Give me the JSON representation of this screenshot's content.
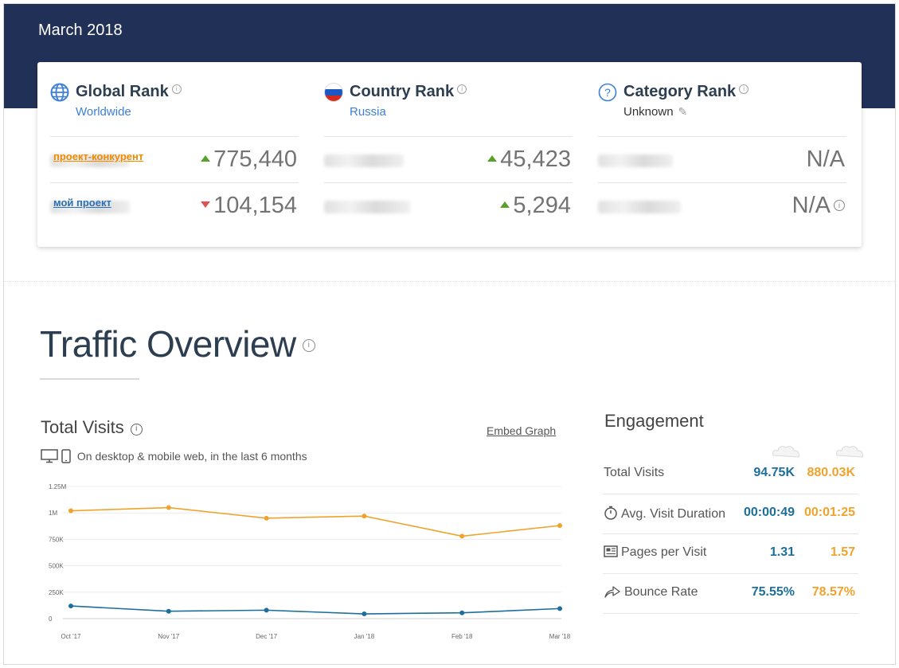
{
  "header": {
    "date": "March 2018"
  },
  "ranks": [
    {
      "title": "Global Rank",
      "subtitle": "Worldwide",
      "icon": "globe-icon",
      "rows": [
        {
          "site": "проект-конкурент",
          "site_color": "orange",
          "value": "775,440",
          "trend": "up"
        },
        {
          "site": "мой проект",
          "site_color": "blue",
          "value": "104,154",
          "trend": "down"
        }
      ]
    },
    {
      "title": "Country Rank",
      "subtitle": "Russia",
      "icon": "russia-flag-icon",
      "rows": [
        {
          "value": "45,423",
          "trend": "up"
        },
        {
          "value": "5,294",
          "trend": "up"
        }
      ]
    },
    {
      "title": "Category Rank",
      "subtitle": "Unknown",
      "icon": "question-icon",
      "rows": [
        {
          "value": "N/A"
        },
        {
          "value": "N/A"
        }
      ]
    }
  ],
  "traffic": {
    "title": "Traffic Overview",
    "total_visits_title": "Total Visits",
    "embed_label": "Embed Graph",
    "device_note": "On desktop & mobile web, in the last 6 months"
  },
  "chart_data": {
    "type": "line",
    "categories": [
      "Oct '17",
      "Nov '17",
      "Dec '17",
      "Jan '18",
      "Feb '18",
      "Mar '18"
    ],
    "yticks": [
      "0",
      "250K",
      "500K",
      "750K",
      "1M",
      "1.25M"
    ],
    "ylim": [
      0,
      1250000
    ],
    "grid": true,
    "series": [
      {
        "color": "#f0a32c",
        "values": [
          1020000,
          1050000,
          950000,
          970000,
          780000,
          880000
        ]
      },
      {
        "color": "#1d6f9b",
        "values": [
          120000,
          70000,
          80000,
          45000,
          55000,
          95000
        ]
      }
    ]
  },
  "engagement": {
    "title": "Engagement",
    "rows": [
      {
        "label": "Total Visits",
        "icon": "",
        "v1": "94.75K",
        "v2": "880.03K"
      },
      {
        "label": "Avg. Visit Duration",
        "icon": "stopwatch-icon",
        "v1": "00:00:49",
        "v2": "00:01:25"
      },
      {
        "label": "Pages per Visit",
        "icon": "pages-icon",
        "v1": "1.31",
        "v2": "1.57"
      },
      {
        "label": "Bounce Rate",
        "icon": "bounce-arrow-icon",
        "v1": "75.55%",
        "v2": "78.57%"
      }
    ]
  }
}
